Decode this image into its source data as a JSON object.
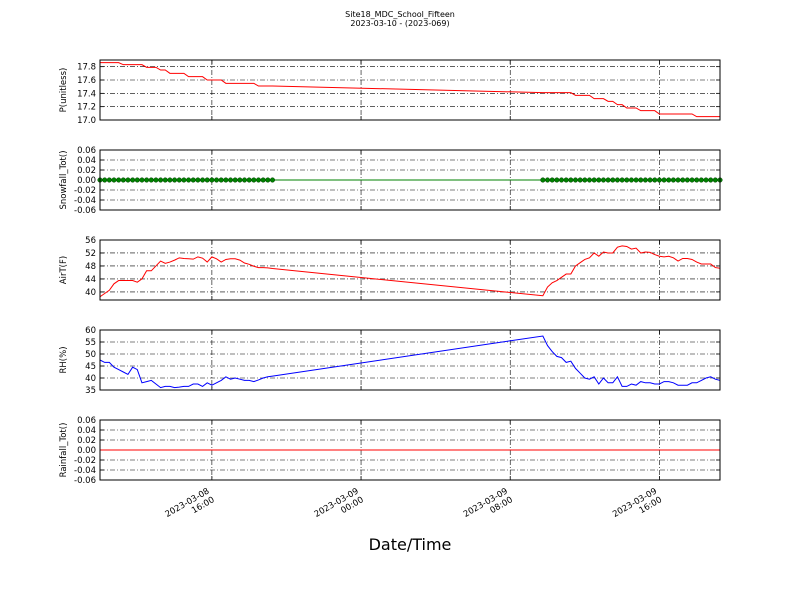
{
  "chart_data": {
    "type": "line",
    "title": "Site18_MDC_School_Fifteen",
    "subtitle": "2023-03-10 - (2023-069)",
    "xlabel": "Date/Time",
    "grid": true,
    "x": [
      "2023-03-08 10:00",
      "2023-03-08 10:15",
      "2023-03-08 10:30",
      "2023-03-08 10:45",
      "2023-03-08 11:00",
      "2023-03-08 11:15",
      "2023-03-08 11:30",
      "2023-03-08 11:45",
      "2023-03-08 12:00",
      "2023-03-08 12:15",
      "2023-03-08 12:30",
      "2023-03-08 12:45",
      "2023-03-08 13:00",
      "2023-03-08 13:15",
      "2023-03-08 13:30",
      "2023-03-08 13:45",
      "2023-03-08 14:00",
      "2023-03-08 14:15",
      "2023-03-08 14:30",
      "2023-03-08 14:45",
      "2023-03-08 15:00",
      "2023-03-08 15:15",
      "2023-03-08 15:30",
      "2023-03-08 15:45",
      "2023-03-08 16:00",
      "2023-03-08 16:15",
      "2023-03-08 16:30",
      "2023-03-08 16:45",
      "2023-03-08 17:00",
      "2023-03-08 17:15",
      "2023-03-08 17:30",
      "2023-03-08 17:45",
      "2023-03-08 18:00",
      "2023-03-08 18:15",
      "2023-03-08 18:30",
      "2023-03-08 18:45",
      "2023-03-08 19:00",
      "2023-03-08 19:15",
      "2023-03-09 09:45",
      "2023-03-09 10:00",
      "2023-03-09 10:15",
      "2023-03-09 10:30",
      "2023-03-09 10:45",
      "2023-03-09 11:00",
      "2023-03-09 11:15",
      "2023-03-09 11:30",
      "2023-03-09 11:45",
      "2023-03-09 12:00",
      "2023-03-09 12:15",
      "2023-03-09 12:30",
      "2023-03-09 12:45",
      "2023-03-09 13:00",
      "2023-03-09 13:15",
      "2023-03-09 13:30",
      "2023-03-09 13:45",
      "2023-03-09 14:00",
      "2023-03-09 14:15",
      "2023-03-09 14:30",
      "2023-03-09 14:45",
      "2023-03-09 15:00",
      "2023-03-09 15:15",
      "2023-03-09 15:30",
      "2023-03-09 15:45",
      "2023-03-09 16:00",
      "2023-03-09 16:15",
      "2023-03-09 16:30",
      "2023-03-09 16:45",
      "2023-03-09 17:00",
      "2023-03-09 17:15",
      "2023-03-09 17:30",
      "2023-03-09 17:45",
      "2023-03-09 18:00",
      "2023-03-09 18:15",
      "2023-03-09 18:30",
      "2023-03-09 18:45",
      "2023-03-09 19:00",
      "2023-03-09 19:15"
    ],
    "xlim": [
      "2023-03-08 10:00",
      "2023-03-09 19:15"
    ],
    "xticks": [
      "2023-03-08 16:00",
      "2023-03-09 00:00",
      "2023-03-09 08:00",
      "2023-03-09 16:00"
    ],
    "panels": [
      {
        "ylabel": "P(unitless)",
        "ylim": [
          17.0,
          17.9
        ],
        "yticks": [
          {
            "value": 17,
            "label": "17.0"
          },
          17.2,
          17.4,
          17.6,
          17.8
        ],
        "series": [
          {
            "color": "#ff0000",
            "values": [
              17.86,
              17.86,
              17.86,
              17.86,
              17.86,
              17.83,
              17.83,
              17.83,
              17.83,
              17.83,
              17.79,
              17.79,
              17.79,
              17.75,
              17.75,
              17.7,
              17.7,
              17.7,
              17.7,
              17.65,
              17.65,
              17.65,
              17.65,
              17.6,
              17.6,
              17.6,
              17.6,
              17.55,
              17.55,
              17.55,
              17.55,
              17.55,
              17.55,
              17.55,
              17.51,
              17.51,
              17.51,
              17.51,
              17.41,
              17.41,
              17.41,
              17.41,
              17.41,
              17.41,
              17.41,
              17.37,
              17.37,
              17.37,
              17.37,
              17.32,
              17.32,
              17.32,
              17.28,
              17.28,
              17.23,
              17.23,
              17.18,
              17.18,
              17.18,
              17.14,
              17.14,
              17.14,
              17.14,
              17.09,
              17.09,
              17.09,
              17.09,
              17.09,
              17.09,
              17.09,
              17.09,
              17.05,
              17.05,
              17.05,
              17.05,
              17.05,
              17.05
            ]
          }
        ]
      },
      {
        "ylabel": "Snowfall_Tot()",
        "ylim": [
          -0.06,
          0.06
        ],
        "yticks": [
          -0.06,
          -0.04,
          -0.02,
          {
            "value": 0,
            "label": "0.00"
          },
          0.02,
          0.04,
          0.06
        ],
        "series": [
          {
            "color": "#008000",
            "marker": "o",
            "values": [
              0,
              0,
              0,
              0,
              0,
              0,
              0,
              0,
              0,
              0,
              0,
              0,
              0,
              0,
              0,
              0,
              0,
              0,
              0,
              0,
              0,
              0,
              0,
              0,
              0,
              0,
              0,
              0,
              0,
              0,
              0,
              0,
              0,
              0,
              0,
              0,
              0,
              0,
              0,
              0,
              0,
              0,
              0,
              0,
              0,
              0,
              0,
              0,
              0,
              0,
              0,
              0,
              0,
              0,
              0,
              0,
              0,
              0,
              0,
              0,
              0,
              0,
              0,
              0,
              0,
              0,
              0,
              0,
              0,
              0,
              0,
              0,
              0,
              0,
              0,
              0,
              0
            ]
          }
        ]
      },
      {
        "ylabel": "AirT(F)",
        "ylim": [
          37.5,
          56
        ],
        "yticks": [
          40,
          44,
          48,
          52,
          56
        ],
        "series": [
          {
            "color": "#ff0000",
            "values": [
              38.5,
              39.5,
              40.5,
              42.5,
              43.5,
              43.5,
              43.5,
              43.5,
              43,
              44,
              46.5,
              46.5,
              48,
              49.5,
              48.8,
              49.2,
              49.8,
              50.5,
              50.3,
              50.2,
              50.1,
              50.8,
              50.4,
              49.2,
              50.8,
              50.2,
              49.2,
              50,
              50.2,
              50.2,
              49.8,
              48.9,
              48.5,
              47.9,
              47.5,
              47.5,
              47.4,
              47.2,
              38.8,
              41.5,
              42.8,
              43.5,
              44.5,
              45.5,
              45.5,
              48,
              49,
              50,
              50.5,
              52,
              51,
              52.3,
              52,
              52,
              53.8,
              54.2,
              54,
              53.2,
              53.5,
              52,
              52.3,
              52.2,
              51.5,
              51,
              50.8,
              51,
              50.5,
              49.5,
              50.3,
              50.3,
              50,
              49.2,
              48.6,
              48.6,
              48.6,
              47.5,
              47.3
            ]
          }
        ]
      },
      {
        "ylabel": "RH(%)",
        "ylim": [
          35,
          60
        ],
        "yticks": [
          35,
          40,
          45,
          50,
          55,
          60
        ],
        "series": [
          {
            "color": "#0000ff",
            "values": [
              47.5,
              46.5,
              46.5,
              44.5,
              43.5,
              42.5,
              41.5,
              44.5,
              43.5,
              38,
              38.5,
              39,
              37.5,
              36,
              36.5,
              36.5,
              36,
              36.2,
              36.5,
              36.5,
              37.5,
              37.5,
              36.5,
              38,
              37,
              38,
              39,
              40.5,
              39.5,
              40,
              39.5,
              39,
              39,
              38.5,
              39.2,
              40,
              40.5,
              40.8,
              57.5,
              53.5,
              51,
              49,
              48.5,
              46.5,
              47,
              44,
              42,
              40,
              39.5,
              40.5,
              37.5,
              40,
              38,
              38,
              40.5,
              36.5,
              36.5,
              37.5,
              37,
              38.5,
              38,
              38,
              37.5,
              37.5,
              38.5,
              38.5,
              38,
              37,
              37,
              37,
              38,
              38,
              39,
              40,
              40.5,
              39.5,
              39
            ]
          }
        ]
      },
      {
        "ylabel": "Rainfall_Tot()",
        "ylim": [
          -0.06,
          0.06
        ],
        "yticks": [
          -0.06,
          -0.04,
          -0.02,
          {
            "value": 0,
            "label": "0.00"
          },
          0.02,
          0.04,
          0.06
        ],
        "series": [
          {
            "color": "#ff0000",
            "values": [
              0,
              0,
              0,
              0,
              0,
              0,
              0,
              0,
              0,
              0,
              0,
              0,
              0,
              0,
              0,
              0,
              0,
              0,
              0,
              0,
              0,
              0,
              0,
              0,
              0,
              0,
              0,
              0,
              0,
              0,
              0,
              0,
              0,
              0,
              0,
              0,
              0,
              0,
              0,
              0,
              0,
              0,
              0,
              0,
              0,
              0,
              0,
              0,
              0,
              0,
              0,
              0,
              0,
              0,
              0,
              0,
              0,
              0,
              0,
              0,
              0,
              0,
              0,
              0,
              0,
              0,
              0,
              0,
              0,
              0,
              0,
              0,
              0,
              0,
              0,
              0,
              0
            ]
          }
        ]
      }
    ]
  }
}
